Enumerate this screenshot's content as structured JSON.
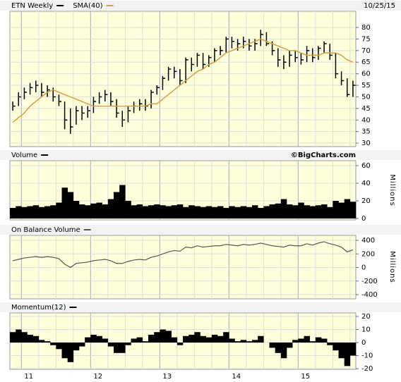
{
  "chart_data": [
    {
      "type": "ohlc",
      "date": "10/25/15",
      "series": [
        {
          "name": "ETN Weekly",
          "color": "#000000",
          "high": [
            48,
            52,
            54,
            56,
            57,
            56,
            55,
            54,
            51,
            48,
            45,
            46,
            46,
            46,
            50,
            52,
            53,
            52,
            49,
            44,
            46,
            48,
            49,
            49,
            53,
            55,
            59,
            63,
            63,
            62,
            67,
            67,
            69,
            69,
            68,
            71,
            72,
            76,
            76,
            75,
            76,
            75,
            75,
            79,
            78,
            74,
            71,
            68,
            70,
            70,
            69,
            72,
            71,
            72,
            74,
            73,
            69,
            61,
            58,
            57
          ],
          "low": [
            44,
            46,
            49,
            51,
            52,
            50,
            50,
            48,
            46,
            36,
            34,
            38,
            40,
            41,
            43,
            47,
            48,
            46,
            41,
            37,
            39,
            43,
            44,
            44,
            45,
            51,
            53,
            57,
            58,
            55,
            56,
            61,
            63,
            62,
            63,
            65,
            68,
            69,
            71,
            70,
            71,
            70,
            70,
            72,
            72,
            68,
            63,
            62,
            63,
            65,
            64,
            65,
            65,
            66,
            69,
            66,
            58,
            55,
            50,
            50
          ],
          "values": [
            46,
            50,
            52,
            54,
            55,
            52,
            53,
            50,
            48,
            40,
            37,
            44,
            43,
            44,
            48,
            50,
            51,
            48,
            43,
            40,
            44,
            46,
            47,
            46,
            52,
            54,
            58,
            62,
            61,
            57,
            66,
            64,
            68,
            64,
            67,
            70,
            70,
            75,
            74,
            73,
            74,
            72,
            73,
            77,
            73,
            70,
            66,
            65,
            68,
            67,
            66,
            70,
            67,
            71,
            73,
            68,
            60,
            57,
            51,
            55
          ]
        },
        {
          "name": "SMA(40)",
          "color": "#d4a040",
          "values": [
            39,
            41,
            43,
            46,
            48,
            50,
            52,
            53,
            52,
            51,
            50,
            49,
            48,
            47,
            46,
            46,
            46,
            46,
            46,
            46,
            46,
            46,
            46,
            46,
            47,
            47,
            49,
            51,
            53,
            55,
            57,
            59,
            61,
            62,
            64,
            65,
            67,
            69,
            70,
            71,
            72,
            73,
            74,
            75,
            74,
            73,
            72,
            71,
            70,
            70,
            69,
            68,
            68,
            68,
            69,
            69,
            69,
            68,
            66,
            65
          ]
        }
      ],
      "ylim": [
        28.5,
        87
      ],
      "yticks": [
        30,
        35,
        40,
        45,
        50,
        55,
        60,
        65,
        70,
        75,
        80
      ],
      "grid": true
    },
    {
      "type": "bar",
      "title": "Volume",
      "source": "©BigCharts.com",
      "ylabel": "Millions",
      "color": "#000000",
      "values": [
        12,
        14,
        13,
        14,
        15,
        13,
        14,
        15,
        18,
        35,
        30,
        20,
        16,
        15,
        17,
        18,
        16,
        22,
        30,
        38,
        20,
        15,
        16,
        14,
        15,
        16,
        15,
        14,
        15,
        16,
        13,
        15,
        14,
        13,
        14,
        13,
        14,
        12,
        14,
        13,
        14,
        13,
        15,
        12,
        14,
        16,
        17,
        22,
        16,
        15,
        18,
        15,
        14,
        15,
        16,
        13,
        20,
        18,
        22,
        19
      ],
      "ylim": [
        -1.6,
        65.6
      ],
      "yticks": [
        0,
        20,
        40,
        60
      ],
      "grid": true
    },
    {
      "type": "line",
      "title": "On Balance Volume",
      "ylabel": "Millions",
      "color": "#555555",
      "values": [
        100,
        120,
        140,
        150,
        160,
        150,
        160,
        150,
        130,
        50,
        0,
        60,
        70,
        80,
        100,
        110,
        120,
        100,
        60,
        60,
        90,
        110,
        120,
        110,
        150,
        170,
        200,
        230,
        250,
        240,
        300,
        290,
        320,
        300,
        310,
        320,
        320,
        340,
        330,
        320,
        340,
        330,
        340,
        360,
        340,
        320,
        310,
        300,
        330,
        320,
        320,
        350,
        330,
        360,
        380,
        350,
        330,
        300,
        230,
        260
      ],
      "ylim": [
        -462,
        473
      ],
      "yticks": [
        -400,
        -200,
        0,
        200,
        400
      ],
      "grid": true
    },
    {
      "type": "bar",
      "title": "Momentum(12)",
      "color": "#000000",
      "values": [
        8,
        10,
        8,
        6,
        5,
        2,
        1,
        -2,
        -5,
        -12,
        -15,
        -6,
        -3,
        4,
        6,
        5,
        3,
        -3,
        -8,
        -8,
        -2,
        3,
        4,
        1,
        6,
        8,
        10,
        9,
        4,
        -2,
        5,
        6,
        8,
        5,
        4,
        6,
        5,
        8,
        3,
        1,
        2,
        1,
        2,
        5,
        0,
        -4,
        -8,
        -12,
        -4,
        2,
        3,
        5,
        1,
        4,
        3,
        -2,
        -6,
        -12,
        -18,
        -10
      ],
      "ylim": [
        -20.5,
        22.7
      ],
      "yticks": [
        -20,
        -10,
        0,
        10,
        20
      ],
      "grid": true,
      "categories": [
        null,
        null,
        "11",
        null,
        null,
        null,
        null,
        null,
        null,
        null,
        null,
        null,
        null,
        null,
        "12",
        null,
        null,
        null,
        null,
        null,
        null,
        null,
        null,
        null,
        null,
        null,
        "13",
        null,
        null,
        null,
        null,
        null,
        null,
        null,
        null,
        null,
        null,
        null,
        "14",
        null,
        null,
        null,
        null,
        null,
        null,
        null,
        null,
        null,
        null,
        null,
        "15",
        null,
        null,
        null,
        null,
        null,
        null,
        null,
        null,
        null
      ]
    }
  ]
}
